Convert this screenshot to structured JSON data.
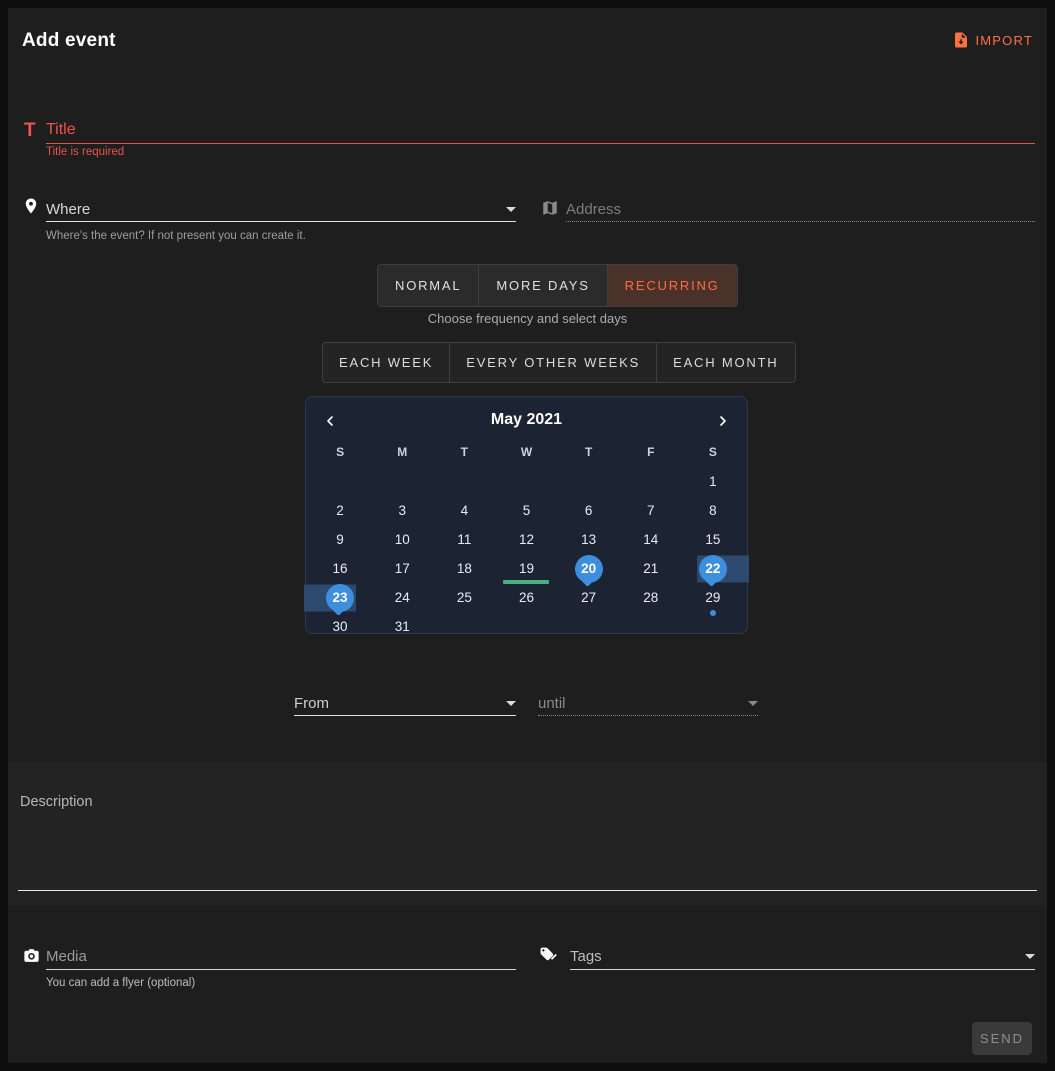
{
  "header": {
    "title": "Add event",
    "import_label": "IMPORT"
  },
  "icons": {
    "title_glyph": "T"
  },
  "title_field": {
    "placeholder": "Title",
    "error": "Title is required",
    "accent_color": "#ef5350"
  },
  "where_field": {
    "placeholder": "Where",
    "helper": "Where's the event? If not present you can create it."
  },
  "address_field": {
    "placeholder": "Address",
    "disabled": true
  },
  "event_type_tabs": {
    "tabs": [
      {
        "label": "NORMAL",
        "selected": false
      },
      {
        "label": "MORE DAYS",
        "selected": false
      },
      {
        "label": "RECURRING",
        "selected": true
      }
    ],
    "helper": "Choose frequency and select days",
    "selected_color": "#ff6e40"
  },
  "frequency_buttons": [
    {
      "label": "EACH WEEK"
    },
    {
      "label": "EVERY OTHER WEEKS"
    },
    {
      "label": "EACH MONTH"
    }
  ],
  "calendar": {
    "month_label": "May 2021",
    "weekday_headers": [
      "S",
      "M",
      "T",
      "W",
      "T",
      "F",
      "S"
    ],
    "weeks": [
      [
        null,
        null,
        null,
        null,
        null,
        null,
        1
      ],
      [
        2,
        3,
        4,
        5,
        6,
        7,
        8
      ],
      [
        9,
        10,
        11,
        12,
        13,
        14,
        15
      ],
      [
        16,
        17,
        18,
        19,
        20,
        21,
        22
      ],
      [
        23,
        24,
        25,
        26,
        27,
        28,
        29
      ],
      [
        30,
        31,
        null,
        null,
        null,
        null,
        null
      ]
    ],
    "selected_balloon_days": [
      20,
      22,
      23
    ],
    "range_bands": [
      {
        "day": 22,
        "extend": "right"
      },
      {
        "day": 23,
        "extend": "left"
      }
    ],
    "today_underline_day": 19,
    "event_dot_day": 29,
    "colors": {
      "background": "#1c2433",
      "selected_day": "#3d8fdd",
      "range_band": "#2d4a6e",
      "today_underline": "#4caf82"
    }
  },
  "time_fields": {
    "from_label": "From",
    "until_placeholder": "until",
    "until_disabled": true
  },
  "description_field": {
    "label": "Description"
  },
  "media_field": {
    "placeholder": "Media",
    "helper": "You can add a flyer (optional)"
  },
  "tags_field": {
    "placeholder": "Tags"
  },
  "send_button": {
    "label": "SEND",
    "disabled": true
  }
}
